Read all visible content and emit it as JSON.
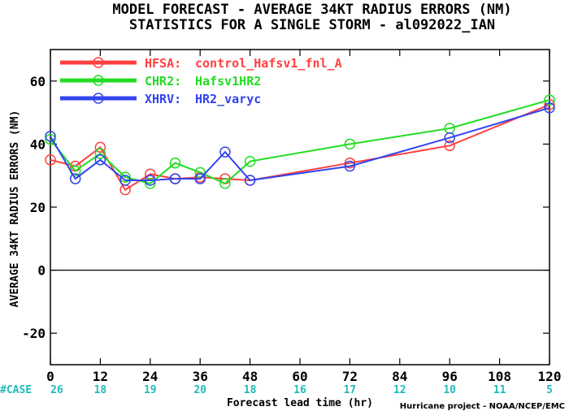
{
  "chart_data": {
    "type": "line",
    "title": "MODEL FORECAST - AVERAGE 34KT RADIUS ERRORS (NM)",
    "subtitle": "STATISTICS FOR A SINGLE STORM - al092022_IAN",
    "xlabel": "Forecast lead time (hr)",
    "ylabel": "AVERAGE 34KT RADIUS ERRORS (NM)",
    "xlim": [
      0,
      120
    ],
    "ylim": [
      -30,
      70
    ],
    "xticks": [
      0,
      12,
      24,
      36,
      48,
      60,
      72,
      84,
      96,
      108,
      120
    ],
    "yticks": [
      -20,
      0,
      20,
      40,
      60
    ],
    "zero_line": true,
    "legend_position": "top-left",
    "series": [
      {
        "name": "HFSA:",
        "desc": "control_Hafsv1_fnl_A",
        "color": "#ff4040",
        "x": [
          0,
          6,
          12,
          18,
          24,
          30,
          36,
          42,
          48,
          72,
          96,
          120
        ],
        "values": [
          35,
          33,
          39,
          25.5,
          30.5,
          29,
          29.5,
          29,
          28.5,
          34,
          39.5,
          52.5
        ]
      },
      {
        "name": "CHR2:",
        "desc": "Hafsv1HR2",
        "color": "#22dd22",
        "x": [
          0,
          6,
          12,
          18,
          24,
          30,
          36,
          42,
          48,
          72,
          96,
          120
        ],
        "values": [
          41.5,
          31.5,
          37,
          29.5,
          27.5,
          34,
          31,
          27.5,
          34.5,
          40,
          45,
          54
        ]
      },
      {
        "name": "XHRV:",
        "desc": "HR2_varyc",
        "color": "#3344ee",
        "x": [
          0,
          6,
          12,
          18,
          24,
          30,
          36,
          42,
          48,
          72,
          96,
          120
        ],
        "values": [
          42.5,
          29,
          35,
          28.5,
          28.5,
          29,
          29,
          37.5,
          28.5,
          33,
          42,
          51.5
        ]
      }
    ],
    "case_label": "#CASE",
    "case_color": "#22bbbb",
    "cases": [
      {
        "x": 0,
        "value": "26"
      },
      {
        "x": 12,
        "value": "18"
      },
      {
        "x": 24,
        "value": "19"
      },
      {
        "x": 36,
        "value": "20"
      },
      {
        "x": 48,
        "value": "18"
      },
      {
        "x": 60,
        "value": "16"
      },
      {
        "x": 72,
        "value": "17"
      },
      {
        "x": 84,
        "value": "12"
      },
      {
        "x": 96,
        "value": "10"
      },
      {
        "x": 108,
        "value": "11"
      },
      {
        "x": 120,
        "value": "5"
      }
    ],
    "credit": "Hurricane project - NOAA/NCEP/EMC"
  }
}
